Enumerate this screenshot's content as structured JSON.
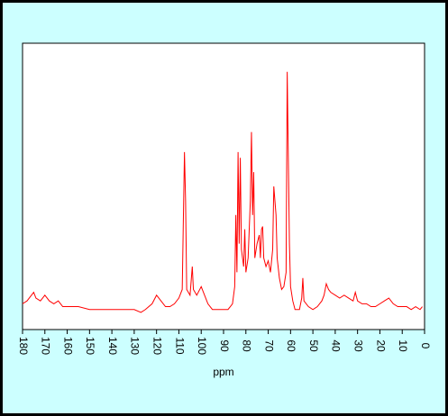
{
  "chart_data": {
    "type": "line",
    "xlabel": "ppm",
    "x": [
      180,
      178,
      176,
      175,
      174,
      172,
      170,
      168,
      166,
      164,
      162,
      160,
      155,
      150,
      145,
      140,
      135,
      130,
      127,
      125,
      122,
      120,
      118,
      116,
      114,
      112,
      110,
      108.5,
      107.5,
      107,
      106.5,
      105,
      104,
      103.5,
      102,
      100,
      99,
      97,
      95,
      92,
      90,
      88,
      86,
      85,
      84.5,
      84,
      83.5,
      83,
      82.5,
      82,
      81,
      80.5,
      80,
      79,
      78,
      77.5,
      77,
      76.5,
      76,
      75,
      74,
      73.5,
      73,
      72.5,
      72,
      71,
      70,
      69,
      68,
      67.5,
      67,
      66.5,
      66,
      65,
      64,
      63,
      62,
      61.5,
      61,
      60.5,
      60,
      59,
      58,
      56,
      55,
      54.5,
      54,
      52,
      50,
      48,
      46,
      45,
      44,
      43,
      42,
      40,
      38,
      36,
      34,
      32,
      31,
      30,
      28,
      26,
      24,
      22,
      20,
      18,
      16,
      14,
      12,
      10,
      8,
      6,
      4,
      2,
      1
    ],
    "series": [
      {
        "color": "#ff0000",
        "values": [
          9,
          10,
          12,
          13,
          11,
          10,
          12,
          10,
          9,
          10,
          8,
          8,
          8,
          7,
          7,
          7,
          7,
          7,
          6,
          7,
          9,
          12,
          10,
          8,
          8,
          9,
          11,
          14,
          62,
          45,
          14,
          12,
          22,
          14,
          12,
          15,
          13,
          9,
          7,
          7,
          7,
          7,
          9,
          15,
          40,
          20,
          62,
          30,
          60,
          28,
          22,
          35,
          20,
          25,
          45,
          69,
          40,
          55,
          25,
          30,
          33,
          25,
          35,
          36,
          25,
          22,
          24,
          20,
          28,
          50,
          45,
          40,
          25,
          18,
          14,
          15,
          20,
          90,
          60,
          30,
          15,
          10,
          7,
          7,
          11,
          18,
          10,
          8,
          7,
          8,
          10,
          12,
          16,
          14,
          13,
          12,
          11,
          12,
          11,
          10,
          13,
          10,
          9,
          9,
          8,
          8,
          9,
          10,
          11,
          9,
          8,
          8,
          8,
          7,
          8,
          7,
          8
        ]
      }
    ],
    "xlim": [
      180,
      0
    ],
    "xticks": [
      180,
      170,
      160,
      150,
      140,
      130,
      120,
      110,
      100,
      90,
      80,
      70,
      60,
      50,
      40,
      30,
      20,
      10,
      0
    ],
    "ylim": [
      0,
      100
    ]
  }
}
